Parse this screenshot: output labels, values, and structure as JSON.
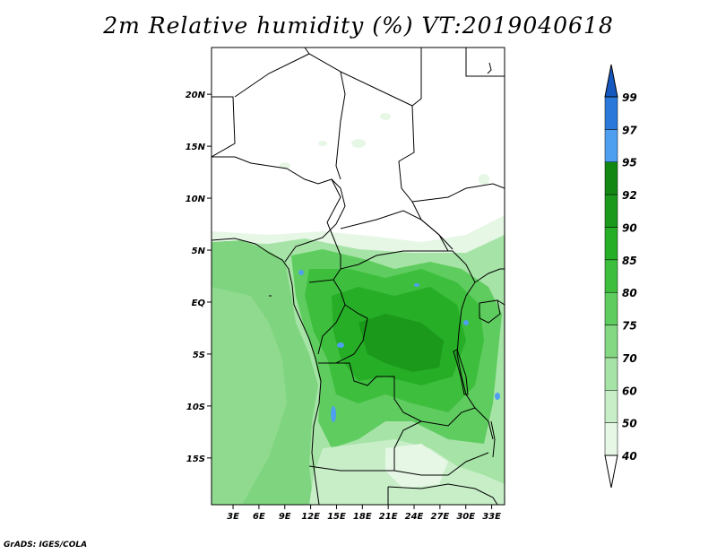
{
  "title": "2m Relative humidity (%) VT:2019040618",
  "credit": "GrADS: IGES/COLA",
  "map": {
    "lat_labels": [
      "20N",
      "15N",
      "10N",
      "5N",
      "EQ",
      "5S",
      "10S",
      "15S"
    ],
    "lat_values": [
      20,
      15,
      10,
      5,
      0,
      -5,
      -10,
      -15
    ],
    "lon_labels": [
      "3E",
      "6E",
      "9E",
      "12E",
      "15E",
      "18E",
      "21E",
      "24E",
      "27E",
      "30E",
      "33E"
    ],
    "lon_values": [
      3,
      6,
      9,
      12,
      15,
      18,
      21,
      24,
      27,
      30,
      33
    ],
    "lat_range": [
      -19.5,
      24.5
    ],
    "lon_range": [
      0.5,
      34.5
    ]
  },
  "colorbar": {
    "levels": [
      "40",
      "50",
      "60",
      "70",
      "75",
      "80",
      "85",
      "90",
      "92",
      "95",
      "97",
      "99"
    ],
    "colors": [
      "#ffffff",
      "#e6f7e6",
      "#c8eec8",
      "#a6e3a6",
      "#84d884",
      "#5fcc5f",
      "#3dbf3d",
      "#27ae27",
      "#1a991a",
      "#128812",
      "#4f9ff0",
      "#2a78d9",
      "#1558c0"
    ]
  }
}
